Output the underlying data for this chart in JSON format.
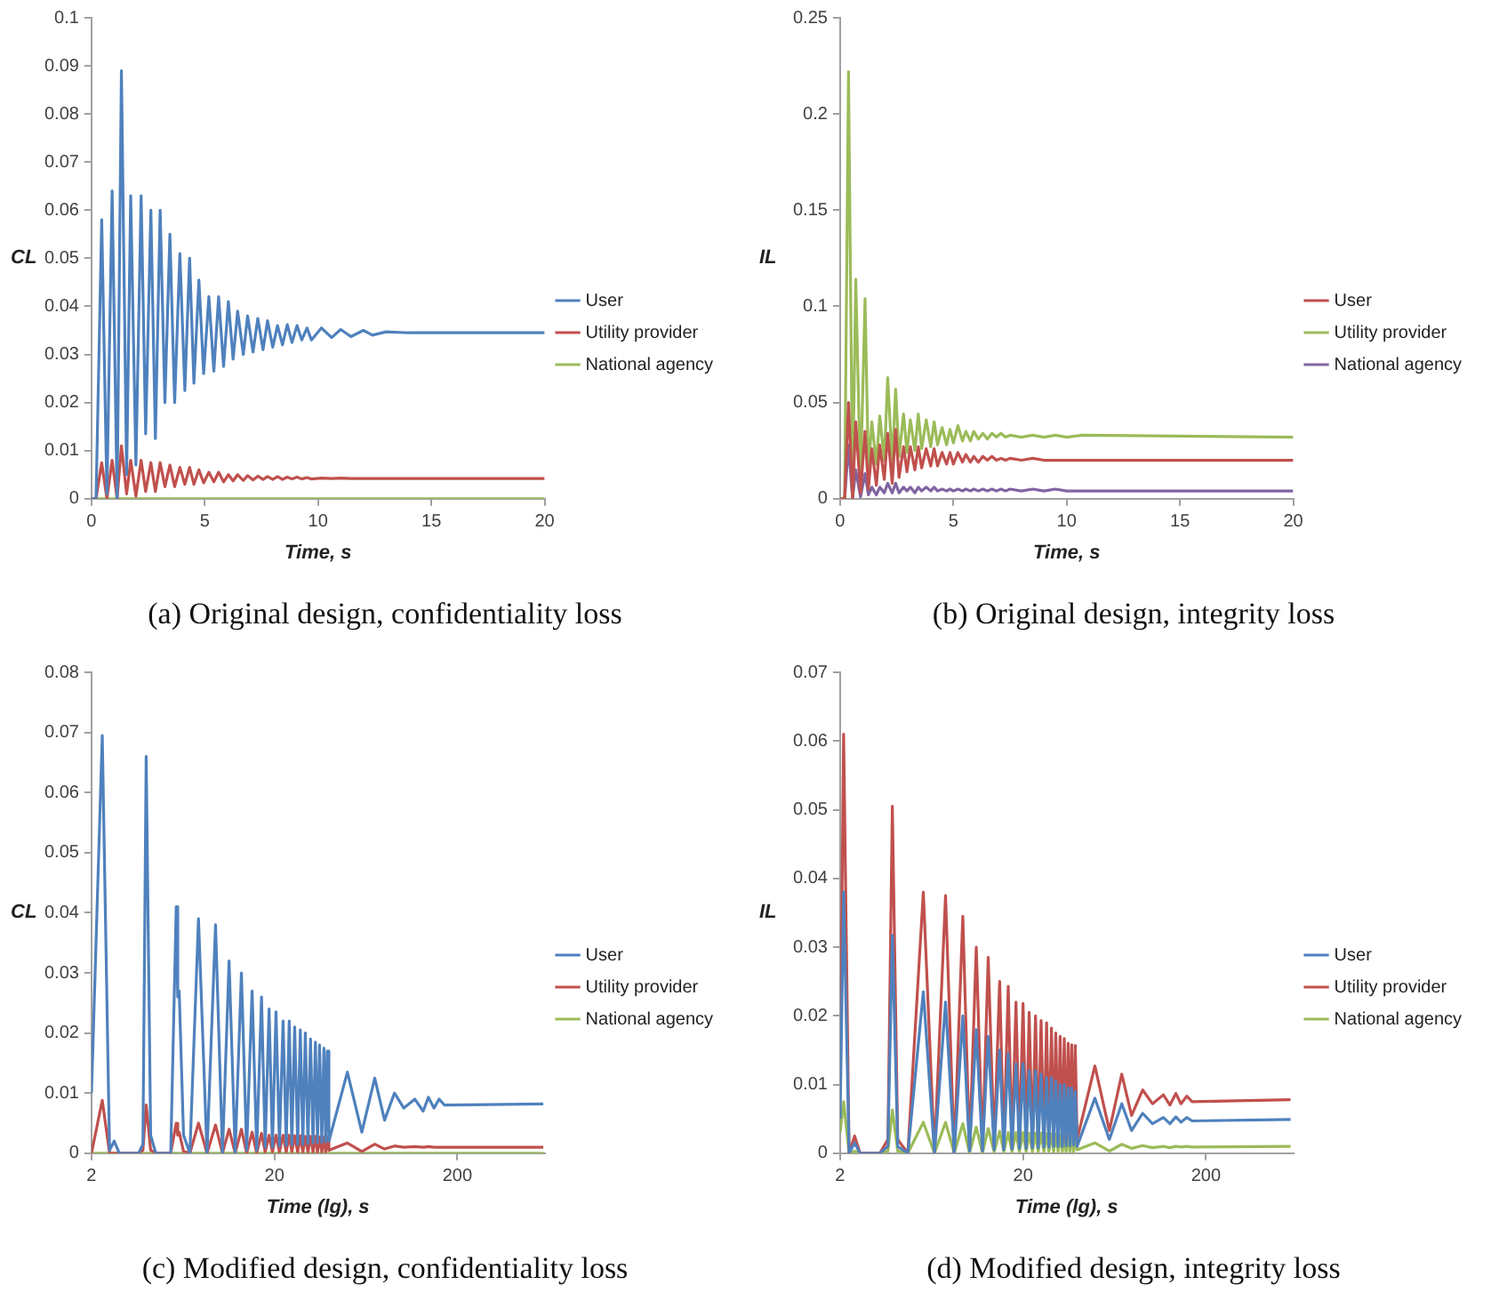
{
  "chart_data": [
    {
      "type": "line",
      "title": "(a) Original design, confidentiality loss",
      "xlabel": "Time, s",
      "ylabel": "CL",
      "legend": "right",
      "x": [
        0,
        0.2,
        0.45,
        0.68,
        0.91,
        1.13,
        1.32,
        1.55,
        1.73,
        1.96,
        2.19,
        2.39,
        2.62,
        2.82,
        3.03,
        3.24,
        3.46,
        3.67,
        3.9,
        4.12,
        4.33,
        4.52,
        4.74,
        4.95,
        5.18,
        5.4,
        5.61,
        5.83,
        6.04,
        6.25,
        6.45,
        6.7,
        6.89,
        7.13,
        7.34,
        7.57,
        7.77,
        8.0,
        8.21,
        8.43,
        8.64,
        8.85,
        9.07,
        9.28,
        9.51,
        9.71,
        10.15,
        10.6,
        11.0,
        11.45,
        12,
        12.4,
        13,
        14,
        20
      ],
      "series": [
        {
          "name": "User",
          "color": "#4f81bd",
          "values": [
            0,
            0,
            0.058,
            0.001,
            0.064,
            0,
            0.089,
            0.005,
            0.063,
            0.007,
            0.063,
            0.0135,
            0.06,
            0.0125,
            0.06,
            0.02,
            0.055,
            0.02,
            0.051,
            0.0225,
            0.05,
            0.024,
            0.0455,
            0.026,
            0.042,
            0.0265,
            0.042,
            0.0275,
            0.041,
            0.029,
            0.039,
            0.03,
            0.038,
            0.0305,
            0.0375,
            0.031,
            0.037,
            0.0315,
            0.036,
            0.032,
            0.0362,
            0.0325,
            0.036,
            0.033,
            0.0355,
            0.033,
            0.0355,
            0.0335,
            0.0352,
            0.0337,
            0.035,
            0.034,
            0.0347,
            0.0345,
            0.0345
          ]
        },
        {
          "name": "Utility provider",
          "color": "#c0504d",
          "values": [
            0,
            0,
            0.0075,
            0,
            0.008,
            0,
            0.011,
            0.001,
            0.008,
            0.0005,
            0.008,
            0.0015,
            0.0075,
            0.0015,
            0.0075,
            0.0025,
            0.007,
            0.0025,
            0.0065,
            0.003,
            0.0065,
            0.003,
            0.006,
            0.0033,
            0.0055,
            0.0035,
            0.0055,
            0.0035,
            0.005,
            0.0037,
            0.005,
            0.0038,
            0.0048,
            0.0039,
            0.0047,
            0.004,
            0.0046,
            0.004,
            0.0046,
            0.004,
            0.0045,
            0.0041,
            0.0045,
            0.0041,
            0.0044,
            0.0041,
            0.0043,
            0.0042,
            0.0043,
            0.0042,
            0.0042,
            0.0042,
            0.0042,
            0.0042,
            0.0042
          ]
        },
        {
          "name": "National agency",
          "color": "#9bbb59",
          "values": [
            0,
            0,
            0,
            0,
            0,
            0,
            0,
            0,
            0,
            0,
            0,
            0,
            0,
            0,
            0,
            0,
            0,
            0,
            0,
            0,
            0,
            0,
            0,
            0,
            0,
            0,
            0,
            0,
            0,
            0,
            0,
            0,
            0,
            0,
            0,
            0,
            0,
            0,
            0,
            0,
            0,
            0,
            0,
            0,
            0,
            0,
            0,
            0,
            0,
            0,
            0,
            0,
            0,
            0,
            0
          ]
        }
      ],
      "xlim": [
        0,
        20
      ],
      "xticks": [
        0,
        5,
        10,
        15,
        20
      ],
      "ylim": [
        0,
        0.1
      ],
      "yticks": [
        0,
        0.01,
        0.02,
        0.03,
        0.04,
        0.05,
        0.06,
        0.07,
        0.08,
        0.09,
        0.1
      ]
    },
    {
      "type": "line",
      "title": "(b) Original design, integrity loss",
      "xlabel": "Time, s",
      "ylabel": "IL",
      "legend": "right",
      "x": [
        0,
        0.2,
        0.37,
        0.55,
        0.69,
        0.9,
        1.1,
        1.25,
        1.4,
        1.6,
        1.75,
        1.95,
        2.1,
        2.3,
        2.45,
        2.6,
        2.8,
        2.95,
        3.1,
        3.3,
        3.45,
        3.6,
        3.8,
        4.0,
        4.15,
        4.3,
        4.5,
        4.7,
        4.85,
        5.0,
        5.2,
        5.4,
        5.55,
        5.75,
        5.9,
        6.1,
        6.3,
        6.5,
        6.7,
        6.9,
        7.1,
        7.3,
        7.5,
        8,
        8.5,
        9,
        9.5,
        10,
        10.7,
        20
      ],
      "series": [
        {
          "name": "User",
          "color": "#c0504d",
          "values": [
            0,
            0,
            0.05,
            0,
            0.04,
            0.003,
            0.035,
            0.005,
            0.026,
            0.007,
            0.028,
            0.01,
            0.034,
            0.008,
            0.036,
            0.011,
            0.027,
            0.014,
            0.027,
            0.015,
            0.027,
            0.016,
            0.026,
            0.017,
            0.026,
            0.017,
            0.024,
            0.018,
            0.024,
            0.018,
            0.024,
            0.019,
            0.023,
            0.019,
            0.022,
            0.019,
            0.022,
            0.02,
            0.022,
            0.02,
            0.021,
            0.02,
            0.021,
            0.02,
            0.021,
            0.02,
            0.02,
            0.02,
            0.02,
            0.02
          ]
        },
        {
          "name": "Utility provider",
          "color": "#9bbb59",
          "values": [
            0,
            0,
            0.222,
            0.002,
            0.114,
            0.008,
            0.104,
            0.014,
            0.04,
            0.018,
            0.043,
            0.02,
            0.063,
            0.018,
            0.057,
            0.022,
            0.044,
            0.024,
            0.041,
            0.025,
            0.044,
            0.026,
            0.041,
            0.027,
            0.04,
            0.028,
            0.037,
            0.028,
            0.036,
            0.029,
            0.038,
            0.03,
            0.035,
            0.03,
            0.035,
            0.031,
            0.034,
            0.031,
            0.034,
            0.032,
            0.034,
            0.032,
            0.033,
            0.032,
            0.033,
            0.032,
            0.033,
            0.032,
            0.033,
            0.032
          ]
        },
        {
          "name": "National agency",
          "color": "#8064a2",
          "values": [
            0,
            0,
            0.028,
            0,
            0.015,
            0.001,
            0.013,
            0.002,
            0.006,
            0.002,
            0.006,
            0.003,
            0.008,
            0.003,
            0.008,
            0.003,
            0.006,
            0.004,
            0.006,
            0.003,
            0.006,
            0.004,
            0.006,
            0.004,
            0.006,
            0.004,
            0.005,
            0.004,
            0.005,
            0.004,
            0.005,
            0.004,
            0.005,
            0.004,
            0.005,
            0.004,
            0.005,
            0.004,
            0.005,
            0.004,
            0.005,
            0.004,
            0.005,
            0.004,
            0.005,
            0.004,
            0.005,
            0.004,
            0.004,
            0.004
          ]
        }
      ],
      "xlim": [
        0,
        20
      ],
      "xticks": [
        0,
        5,
        10,
        15,
        20
      ],
      "ylim": [
        0,
        0.25
      ],
      "yticks": [
        0,
        0.05,
        0.1,
        0.15,
        0.2,
        0.25
      ]
    },
    {
      "type": "line",
      "title": "(c) Modified design, confidentiality loss",
      "xlabel": "Time (lg), s",
      "ylabel": "CL",
      "legend": "right",
      "log": "x",
      "x": [
        2,
        2.29,
        2.51,
        2.66,
        2.84,
        3.62,
        3.82,
        3.98,
        4.21,
        4.49,
        5.42,
        5.81,
        5.92,
        6.03,
        6.37,
        6.9,
        7.69,
        8.56,
        9.53,
        10.4,
        11.3,
        12.2,
        13.2,
        14.1,
        15.1,
        16.0,
        17.0,
        17.8,
        18.7,
        19.5,
        20.4,
        21.3,
        22.3,
        23.2,
        24.1,
        24.9,
        25.8,
        26.8,
        27.7,
        28.6,
        29.5,
        30.5,
        31.5,
        32.5,
        33.5,
        34.4,
        35.3,
        36.3,
        37.3,
        38.1,
        38.9,
        39.7,
        50.1,
        60.1,
        70.7,
        80.0,
        90.6,
        102,
        117,
        130,
        139,
        149,
        159,
        170,
        590
      ],
      "series": [
        {
          "name": "User",
          "color": "#4f81bd",
          "values": [
            0.01,
            0.0695,
            0.0005,
            0.002,
            0,
            0,
            0.0015,
            0.066,
            0.003,
            0,
            0,
            0.041,
            0.026,
            0.027,
            0.003,
            0,
            0.039,
            0,
            0.038,
            0,
            0.032,
            0,
            0.03,
            0.0005,
            0.027,
            0.0005,
            0.026,
            0.001,
            0.024,
            0.001,
            0.0235,
            0.0012,
            0.022,
            0.0013,
            0.022,
            0.0014,
            0.021,
            0.0015,
            0.0205,
            0.0015,
            0.02,
            0.0016,
            0.019,
            0.0017,
            0.0185,
            0.0018,
            0.018,
            0.0018,
            0.0175,
            0.0019,
            0.017,
            0.002,
            0.0135,
            0.0035,
            0.0125,
            0.0055,
            0.01,
            0.0075,
            0.009,
            0.007,
            0.0093,
            0.0075,
            0.009,
            0.008,
            0.0082
          ]
        },
        {
          "name": "Utility provider",
          "color": "#c0504d",
          "values": [
            0,
            0.0088,
            0,
            0,
            0,
            0,
            0.0005,
            0.008,
            0.0005,
            0,
            0,
            0.005,
            0.003,
            0.0035,
            0.0003,
            0,
            0.005,
            0,
            0.0047,
            0,
            0.004,
            0,
            0.004,
            0,
            0.0035,
            0,
            0.0033,
            0.0002,
            0.003,
            0.0002,
            0.003,
            0.0002,
            0.003,
            0.0002,
            0.003,
            0.0002,
            0.0029,
            0.0002,
            0.0029,
            0.0002,
            0.0028,
            0.0002,
            0.0028,
            0.0002,
            0.0028,
            0.0002,
            0.0027,
            0.0002,
            0.0027,
            0.0002,
            0.0027,
            0.0005,
            0.0017,
            0.0003,
            0.0015,
            0.0007,
            0.0012,
            0.001,
            0.0011,
            0.001,
            0.0011,
            0.001,
            0.001,
            0.001,
            0.001
          ]
        },
        {
          "name": "National agency",
          "color": "#9bbb59",
          "values": [
            0,
            0,
            0,
            0,
            0,
            0,
            0,
            0,
            0,
            0,
            0,
            0,
            0,
            0,
            0,
            0,
            0,
            0,
            0,
            0,
            0,
            0,
            0,
            0,
            0,
            0,
            0,
            0,
            0,
            0,
            0,
            0,
            0,
            0,
            0,
            0,
            0,
            0,
            0,
            0,
            0,
            0,
            0,
            0,
            0,
            0,
            0,
            0,
            0,
            0,
            0,
            0,
            0,
            0,
            0,
            0,
            0,
            0,
            0,
            0,
            0,
            0,
            0,
            0,
            0
          ]
        }
      ],
      "xlim": [
        2,
        600
      ],
      "xticks": [
        2,
        20,
        200
      ],
      "ylim": [
        0,
        0.08
      ],
      "yticks": [
        0,
        0.01,
        0.02,
        0.03,
        0.04,
        0.05,
        0.06,
        0.07,
        0.08
      ]
    },
    {
      "type": "line",
      "title": "(d) Modified design, integrity loss",
      "xlabel": "Time (lg), s",
      "ylabel": "IL",
      "legend": "right",
      "log": "x",
      "x": [
        2,
        2.09,
        2.24,
        2.4,
        2.57,
        3.3,
        3.65,
        3.86,
        4.13,
        4.69,
        5.7,
        6.56,
        7.54,
        8.41,
        9.37,
        10.2,
        11.1,
        12.0,
        12.9,
        13.9,
        14.9,
        15.7,
        16.6,
        17.4,
        18.3,
        19.1,
        20,
        20.8,
        21.6,
        22.5,
        23.4,
        24.2,
        25.1,
        26.0,
        26.9,
        27.7,
        28.6,
        29.4,
        30.2,
        31.1,
        31.9,
        32.8,
        33.6,
        34.4,
        35.3,
        36.1,
        36.9,
        37.8,
        38.6,
        39.5,
        49.4,
        59.3,
        69.3,
        78.4,
        90.2,
        102,
        117,
        127,
        137,
        146,
        157,
        168,
        580
      ],
      "series": [
        {
          "name": "User",
          "color": "#4f81bd",
          "values": [
            0.005,
            0.038,
            0,
            0.0015,
            0,
            0,
            0.001,
            0.0317,
            0.001,
            0,
            0.0235,
            0,
            0.022,
            0,
            0.02,
            0.0003,
            0.018,
            0.0003,
            0.017,
            0.0005,
            0.015,
            0.0005,
            0.0145,
            0.0006,
            0.013,
            0.0007,
            0.013,
            0.0007,
            0.012,
            0.0008,
            0.012,
            0.0008,
            0.0115,
            0.0009,
            0.011,
            0.0009,
            0.011,
            0.001,
            0.0105,
            0.001,
            0.01,
            0.001,
            0.01,
            0.0011,
            0.0095,
            0.0011,
            0.0095,
            0.0012,
            0.009,
            0.001,
            0.008,
            0.002,
            0.0072,
            0.0033,
            0.0058,
            0.0043,
            0.0052,
            0.0043,
            0.0053,
            0.0045,
            0.0052,
            0.0047,
            0.0049
          ]
        },
        {
          "name": "Utility provider",
          "color": "#c0504d",
          "values": [
            0.01,
            0.061,
            0,
            0.0025,
            0,
            0,
            0.002,
            0.0505,
            0.002,
            0,
            0.038,
            0,
            0.0375,
            0,
            0.0345,
            0.0005,
            0.03,
            0.0005,
            0.0285,
            0.001,
            0.025,
            0.001,
            0.0243,
            0.001,
            0.022,
            0.0012,
            0.0218,
            0.0012,
            0.0205,
            0.0013,
            0.02,
            0.0014,
            0.0193,
            0.0015,
            0.019,
            0.0015,
            0.0182,
            0.0016,
            0.0175,
            0.0017,
            0.017,
            0.0017,
            0.0167,
            0.0018,
            0.016,
            0.0018,
            0.0158,
            0.0019,
            0.0157,
            0.002,
            0.0127,
            0.0033,
            0.0115,
            0.0055,
            0.0092,
            0.0072,
            0.0085,
            0.007,
            0.0087,
            0.0072,
            0.0083,
            0.0075,
            0.0078
          ]
        },
        {
          "name": "National agency",
          "color": "#9bbb59",
          "values": [
            0.003,
            0.0075,
            0,
            0.0003,
            0,
            0,
            0.0003,
            0.0063,
            0.0003,
            0,
            0.0045,
            0,
            0.0045,
            0,
            0.0043,
            0,
            0.0038,
            0,
            0.0036,
            0.0002,
            0.0032,
            0.0002,
            0.003,
            0.0002,
            0.003,
            0.0002,
            0.003,
            0.0002,
            0.0029,
            0.0002,
            0.0029,
            0.0002,
            0.0029,
            0.0002,
            0.0028,
            0.0002,
            0.0028,
            0.0002,
            0.0028,
            0.0002,
            0.0027,
            0.0002,
            0.0027,
            0.0002,
            0.0027,
            0.0002,
            0.0027,
            0.0002,
            0.0027,
            0.0005,
            0.0015,
            0.0003,
            0.0013,
            0.0007,
            0.0011,
            0.0008,
            0.001,
            0.0008,
            0.001,
            0.0009,
            0.001,
            0.0009,
            0.001
          ]
        }
      ],
      "xlim": [
        2,
        600
      ],
      "xticks": [
        2,
        20,
        200
      ],
      "ylim": [
        0,
        0.07
      ],
      "yticks": [
        0,
        0.01,
        0.02,
        0.03,
        0.04,
        0.05,
        0.06,
        0.07
      ]
    }
  ]
}
